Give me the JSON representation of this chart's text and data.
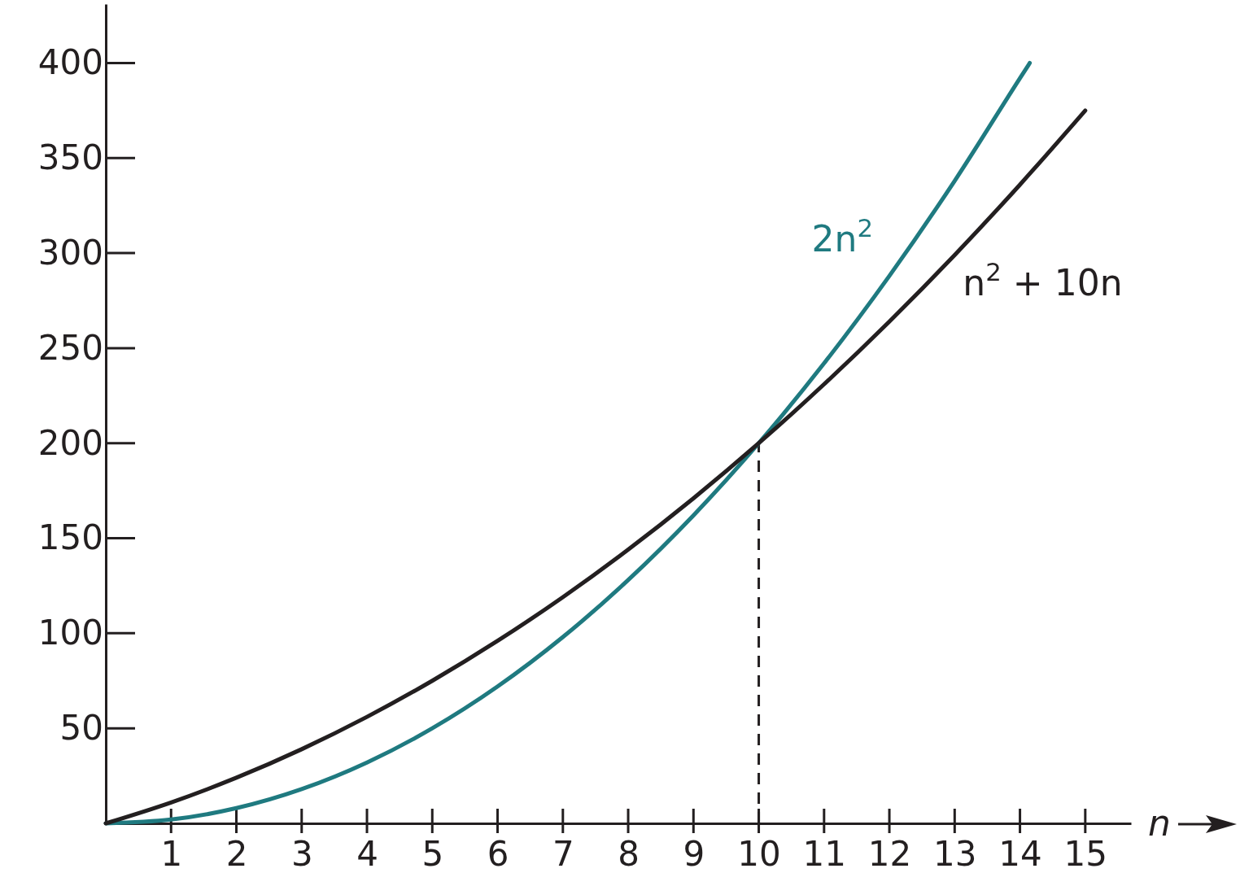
{
  "chart_data": {
    "type": "line",
    "xlabel": "n",
    "xlim": [
      0,
      15.7
    ],
    "ylim": [
      0,
      431
    ],
    "xticks": [
      1,
      2,
      3,
      4,
      5,
      6,
      7,
      8,
      9,
      10,
      11,
      12,
      13,
      14,
      15
    ],
    "yticks": [
      50,
      100,
      150,
      200,
      250,
      300,
      350,
      400
    ],
    "ref_lines": [
      {
        "axis": "x",
        "value": 10,
        "line_style": "dashed",
        "color": "#231f20"
      }
    ],
    "series": [
      {
        "name": "2n$^{2}$",
        "color": "#1f7a80",
        "x": [
          0,
          1,
          2,
          3,
          4,
          5,
          6,
          7,
          8,
          9,
          10,
          11,
          12,
          13,
          14,
          14.15
        ],
        "values": [
          0,
          2,
          8,
          18,
          32,
          50,
          72,
          98,
          128,
          162,
          200,
          242,
          288,
          338,
          392,
          400
        ]
      },
      {
        "name": "n$^{2}$ + 10n",
        "color": "#231f20",
        "x": [
          0,
          1,
          2,
          3,
          4,
          5,
          6,
          7,
          8,
          9,
          10,
          11,
          12,
          13,
          14,
          15
        ],
        "values": [
          0,
          11,
          24,
          39,
          56,
          75,
          96,
          119,
          144,
          171,
          200,
          231,
          264,
          299,
          336,
          375
        ]
      }
    ],
    "grid": false,
    "legend": false,
    "line_style": "solid",
    "marker": "none"
  }
}
